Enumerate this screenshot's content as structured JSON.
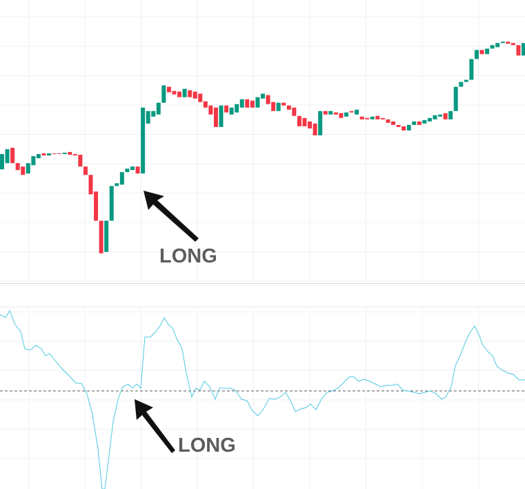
{
  "chart_data": [
    {
      "type": "candlestick",
      "up_color": "#089981",
      "down_color": "#f23645",
      "ylim": [
        2,
        410
      ],
      "annotation": "LONG",
      "open": [
        166,
        175,
        197,
        175,
        170,
        160,
        172,
        182,
        189,
        186,
        189,
        189,
        188,
        191,
        188,
        187,
        170,
        158,
        134,
        92,
        47,
        92,
        142,
        144,
        162,
        165,
        170,
        160,
        232,
        242,
        245,
        262,
        285,
        279,
        278,
        270,
        280,
        278,
        275,
        264,
        258,
        255,
        227,
        258,
        245,
        248,
        255,
        267,
        265,
        255,
        268,
        273,
        263,
        250,
        262,
        258,
        255,
        243,
        240,
        235,
        232,
        215,
        250,
        245,
        248,
        247,
        242,
        250,
        245,
        242,
        240,
        238,
        243,
        240,
        238,
        235,
        230,
        228,
        222,
        230,
        235,
        232,
        235,
        238,
        242,
        247,
        238,
        250,
        285,
        292,
        295,
        325,
        338,
        332,
        340,
        342,
        348,
        350,
        348,
        345,
        330
      ],
      "close": [
        188,
        195,
        175,
        165,
        158,
        175,
        185,
        188,
        186,
        189,
        188,
        188,
        190,
        187,
        186,
        170,
        158,
        130,
        92,
        45,
        92,
        142,
        146,
        162,
        167,
        170,
        160,
        255,
        250,
        250,
        262,
        287,
        277,
        274,
        270,
        282,
        270,
        268,
        263,
        255,
        245,
        227,
        258,
        248,
        255,
        260,
        267,
        255,
        255,
        270,
        275,
        260,
        250,
        262,
        258,
        252,
        243,
        228,
        228,
        225,
        215,
        250,
        245,
        250,
        245,
        240,
        248,
        248,
        252,
        238,
        238,
        242,
        238,
        238,
        233,
        230,
        227,
        222,
        230,
        235,
        230,
        237,
        240,
        244,
        245,
        238,
        250,
        285,
        292,
        295,
        325,
        338,
        332,
        340,
        345,
        348,
        350,
        347,
        345,
        330,
        348
      ]
    },
    {
      "type": "line",
      "color": "#4cc9e0",
      "xlim": [
        0,
        761
      ],
      "ylim": [
        -142,
        121
      ],
      "hline": 0,
      "annotation": "LONG",
      "x": [
        0,
        8,
        14,
        22,
        30,
        36,
        44,
        52,
        60,
        66,
        72,
        80,
        88,
        96,
        104,
        110,
        118,
        126,
        134,
        142,
        148,
        152,
        158,
        164,
        172,
        178,
        186,
        192,
        198,
        204,
        210,
        218,
        226,
        232,
        238,
        244,
        250,
        256,
        264,
        270,
        278,
        284,
        290,
        296,
        304,
        312,
        318,
        326,
        334,
        342,
        350,
        358,
        366,
        374,
        382,
        390,
        398,
        406,
        414,
        422,
        428,
        436,
        444,
        450,
        458,
        466,
        474,
        482,
        490,
        498,
        506,
        512,
        520,
        528,
        536,
        544,
        552,
        560,
        568,
        576,
        584,
        592,
        600,
        608,
        616,
        624,
        632,
        640,
        646,
        654,
        660,
        668,
        676,
        682,
        688,
        694,
        700,
        708,
        714,
        720,
        728,
        736,
        744,
        752,
        761
      ],
      "values": [
        111,
        106,
        116,
        96,
        86,
        61,
        59,
        66,
        61,
        51,
        54,
        44,
        34,
        26,
        18,
        11,
        11,
        -4,
        -34,
        -84,
        -142,
        -142,
        -94,
        -44,
        -9,
        6,
        10,
        4,
        10,
        4,
        78,
        78,
        86,
        94,
        106,
        96,
        91,
        76,
        61,
        26,
        -9,
        4,
        1,
        14,
        6,
        -12,
        4,
        4,
        4,
        0,
        -12,
        -14,
        -29,
        -36,
        -26,
        -11,
        -12,
        -9,
        -2,
        -16,
        -30,
        -26,
        -24,
        -19,
        -27,
        -12,
        -2,
        0,
        4,
        12,
        20,
        21,
        14,
        17,
        14,
        10,
        6,
        8,
        8,
        10,
        1,
        0,
        -2,
        -4,
        -2,
        0,
        -4,
        -12,
        -9,
        6,
        36,
        54,
        74,
        86,
        94,
        82,
        66,
        56,
        51,
        36,
        30,
        26,
        24,
        16,
        16
      ]
    }
  ]
}
